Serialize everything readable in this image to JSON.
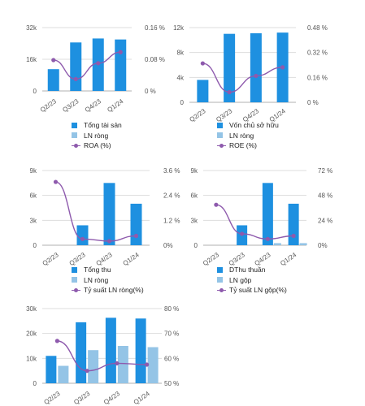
{
  "colors": {
    "bar_primary": "#1e90e0",
    "bar_secondary": "#94c4e6",
    "line": "#8e5aad",
    "grid": "#dddddd",
    "axis": "#b0b0b0"
  },
  "chart_data": [
    {
      "type": "bar",
      "categories": [
        "Q2/23",
        "Q3/23",
        "Q4/23",
        "Q1/24"
      ],
      "left_axis": {
        "ticks": [
          "0",
          "16k",
          "32k"
        ],
        "ylim": [
          0,
          32000
        ]
      },
      "right_axis": {
        "ticks": [
          "0 %",
          "0.08 %",
          "0.16 %"
        ],
        "ylim": [
          0,
          0.16
        ]
      },
      "series": [
        {
          "name": "Tổng tài sản",
          "kind": "bar",
          "axis": "left",
          "values": [
            11000,
            24500,
            26500,
            26000
          ]
        },
        {
          "name": "LN ròng",
          "kind": "bar",
          "axis": "left",
          "values": [
            0,
            0,
            0,
            0
          ]
        },
        {
          "name": "ROA (%)",
          "kind": "line",
          "axis": "right",
          "values": [
            0.078,
            0.03,
            0.07,
            0.098
          ]
        }
      ],
      "legend": [
        "Tổng tài sản",
        "LN ròng",
        "ROA (%)"
      ]
    },
    {
      "type": "bar",
      "categories": [
        "Q2/23",
        "Q3/23",
        "Q4/23",
        "Q1/24"
      ],
      "left_axis": {
        "ticks": [
          "0",
          "4k",
          "8k",
          "12k"
        ],
        "ylim": [
          0,
          12000
        ]
      },
      "right_axis": {
        "ticks": [
          "0 %",
          "0.16 %",
          "0.32 %",
          "0.48 %"
        ],
        "ylim": [
          0,
          0.48
        ]
      },
      "series": [
        {
          "name": "Vốn chủ sở hữu",
          "kind": "bar",
          "axis": "left",
          "values": [
            3600,
            11000,
            11100,
            11200
          ]
        },
        {
          "name": "LN ròng",
          "kind": "bar",
          "axis": "left",
          "values": [
            0,
            0,
            0,
            0
          ]
        },
        {
          "name": "ROE (%)",
          "kind": "line",
          "axis": "right",
          "values": [
            0.25,
            0.065,
            0.17,
            0.225
          ]
        }
      ],
      "legend": [
        "Vốn chủ sở hữu",
        "LN ròng",
        "ROE (%)"
      ]
    },
    {
      "type": "bar",
      "categories": [
        "Q2/23",
        "Q3/23",
        "Q4/23",
        "Q1/24"
      ],
      "left_axis": {
        "ticks": [
          "0",
          "3k",
          "6k",
          "9k"
        ],
        "ylim": [
          0,
          9000
        ]
      },
      "right_axis": {
        "ticks": [
          "0%",
          "1.2 %",
          "2.4 %",
          "3.6 %"
        ],
        "ylim": [
          0,
          3.6
        ]
      },
      "series": [
        {
          "name": "Tổng thu",
          "kind": "bar",
          "axis": "left",
          "values": [
            0,
            2400,
            7500,
            5000
          ]
        },
        {
          "name": "LN ròng",
          "kind": "bar",
          "axis": "left",
          "values": [
            0,
            0,
            0,
            0
          ]
        },
        {
          "name": "Tỷ suất LN ròng(%)",
          "kind": "line",
          "axis": "right",
          "values": [
            3.05,
            0.3,
            0.2,
            0.45
          ]
        }
      ],
      "legend": [
        "Tổng thu",
        "LN ròng",
        "Tỷ suất LN ròng(%)"
      ]
    },
    {
      "type": "bar",
      "categories": [
        "Q2/23",
        "Q3/23",
        "Q4/23",
        "Q1/24"
      ],
      "left_axis": {
        "ticks": [
          "0",
          "3k",
          "6k",
          "9k"
        ],
        "ylim": [
          0,
          9000
        ]
      },
      "right_axis": {
        "ticks": [
          "0%",
          "24 %",
          "48 %",
          "72 %"
        ],
        "ylim": [
          0,
          72
        ]
      },
      "series": [
        {
          "name": "DThu thuần",
          "kind": "bar",
          "axis": "left",
          "values": [
            0,
            2400,
            7500,
            5000
          ]
        },
        {
          "name": "LN gộp",
          "kind": "bar",
          "axis": "left",
          "values": [
            0,
            0,
            250,
            250
          ]
        },
        {
          "name": "Tỷ suất LN gộp(%)",
          "kind": "line",
          "axis": "right",
          "values": [
            39,
            11,
            6,
            9
          ]
        }
      ],
      "legend": [
        "DThu thuần",
        "LN gộp",
        "Tỷ suất LN gộp(%)"
      ]
    },
    {
      "type": "bar",
      "categories": [
        "Q2/23",
        "Q3/23",
        "Q4/23",
        "Q1/24"
      ],
      "left_axis": {
        "ticks": [
          "0",
          "10k",
          "20k",
          "30k"
        ],
        "ylim": [
          0,
          30000
        ]
      },
      "right_axis": {
        "ticks": [
          "50 %",
          "60 %",
          "70 %",
          "80 %"
        ],
        "ylim": [
          50,
          80
        ]
      },
      "series": [
        {
          "name": "",
          "kind": "bar",
          "axis": "left",
          "values": [
            11000,
            24500,
            26300,
            26000
          ]
        },
        {
          "name": "",
          "kind": "bar",
          "axis": "left",
          "values": [
            7000,
            13300,
            15000,
            14500
          ]
        },
        {
          "name": "",
          "kind": "line",
          "axis": "right",
          "values": [
            67,
            55,
            58,
            57.5
          ]
        }
      ],
      "legend": []
    }
  ]
}
